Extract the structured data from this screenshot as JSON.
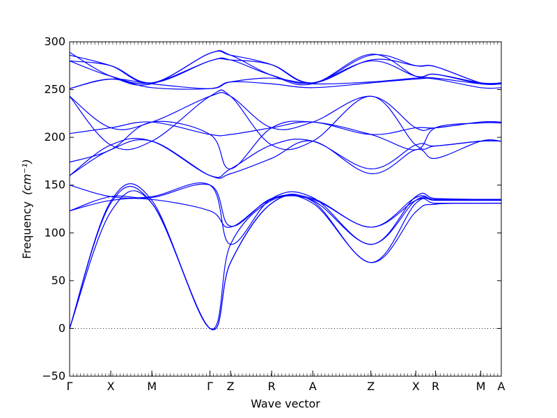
{
  "chart_data": {
    "type": "line",
    "xlabel": "Wave vector",
    "ylabel": "Frequency",
    "ylabel_unit": "(cm⁻¹)",
    "ylim": [
      -50,
      300
    ],
    "y_ticks": [
      -50,
      0,
      50,
      100,
      150,
      200,
      250,
      300
    ],
    "x_ticks": [
      {
        "label": "Γ",
        "x": 0.0
      },
      {
        "label": "X",
        "x": 0.5
      },
      {
        "label": "M",
        "x": 1.0
      },
      {
        "label": "Γ",
        "x": 1.707
      },
      {
        "label": "Z",
        "x": 1.957
      },
      {
        "label": "R",
        "x": 2.457
      },
      {
        "label": "A",
        "x": 2.957
      },
      {
        "label": "Z",
        "x": 3.664
      },
      {
        "label": "X",
        "x": 4.21
      },
      {
        "label": "R",
        "x": 4.45
      },
      {
        "label": "M",
        "x": 5.0
      },
      {
        "label": "A",
        "x": 5.25
      }
    ],
    "xlim": [
      0,
      5.25
    ],
    "zero_line": {
      "y": 0,
      "style": "dotted"
    },
    "series_color": "#0000ff",
    "series": [
      {
        "x": [
          0,
          0.5,
          1.0,
          1.707,
          1.957,
          2.457,
          2.957,
          3.664,
          4.21,
          4.45,
          5.0,
          5.25
        ],
        "y": [
          0,
          122,
          131,
          0,
          69,
          131,
          131,
          69,
          122,
          130,
          131,
          131
        ]
      },
      {
        "x": [
          0,
          0.5,
          1.0,
          1.707,
          1.957,
          2.457,
          2.957,
          3.664,
          4.21,
          4.45,
          5.0,
          5.25
        ],
        "y": [
          0,
          131,
          131,
          0,
          69,
          131,
          133,
          69,
          131,
          131,
          131,
          131
        ]
      },
      {
        "x": [
          0,
          0.5,
          1.0,
          1.707,
          1.957,
          2.457,
          2.957,
          3.664,
          4.21,
          4.45,
          5.0,
          5.25
        ],
        "y": [
          0,
          133,
          134,
          0,
          88,
          134,
          134,
          88,
          134,
          134,
          134,
          134
        ]
      },
      {
        "x": [
          0,
          0.5,
          1.0,
          1.707,
          1.957,
          2.457,
          2.957,
          3.664,
          4.21,
          4.45,
          5.0,
          5.25
        ],
        "y": [
          123,
          134,
          135,
          123,
          106,
          135,
          135,
          106,
          134,
          135,
          135,
          135
        ]
      },
      {
        "x": [
          0,
          0.5,
          1.0,
          1.707,
          1.957,
          2.457,
          2.957,
          3.664,
          4.21,
          4.45,
          5.0,
          5.25
        ],
        "y": [
          123,
          138,
          137,
          150,
          107,
          136,
          136,
          106,
          137,
          135,
          135,
          135
        ]
      },
      {
        "x": [
          0,
          0.5,
          1.0,
          1.707,
          1.957,
          2.457,
          2.957,
          3.664,
          4.21,
          4.45,
          5.0,
          5.25
        ],
        "y": [
          150,
          138,
          138,
          150,
          88,
          136,
          137,
          88,
          138,
          136,
          135,
          135
        ]
      },
      {
        "x": [
          0,
          0.5,
          1.0,
          1.707,
          1.957,
          2.457,
          2.957,
          3.664,
          4.21,
          4.45,
          5.0,
          5.25
        ],
        "y": [
          160,
          187,
          196,
          160,
          162,
          178,
          196,
          162,
          187,
          178,
          196,
          196
        ]
      },
      {
        "x": [
          0,
          0.5,
          1.0,
          1.707,
          1.957,
          2.457,
          2.957,
          3.664,
          4.21,
          4.45,
          5.0,
          5.25
        ],
        "y": [
          160,
          192,
          196,
          160,
          167,
          192,
          196,
          167,
          192,
          191,
          196,
          196
        ]
      },
      {
        "x": [
          0,
          0.5,
          1.0,
          1.707,
          1.957,
          2.457,
          2.957,
          3.664,
          4.21,
          4.45,
          5.0,
          5.25
        ],
        "y": [
          174,
          187,
          216,
          203,
          167,
          210,
          216,
          203,
          187,
          210,
          215,
          215
        ]
      },
      {
        "x": [
          0,
          0.5,
          1.0,
          1.707,
          1.957,
          2.457,
          2.957,
          3.664,
          4.21,
          4.45,
          5.0,
          5.25
        ],
        "y": [
          204,
          210,
          216,
          203,
          203,
          210,
          216,
          203,
          210,
          210,
          216,
          216
        ]
      },
      {
        "x": [
          0,
          0.5,
          1.0,
          1.707,
          1.957,
          2.457,
          2.957,
          3.664,
          4.21,
          4.45,
          5.0,
          5.25
        ],
        "y": [
          243,
          210,
          216,
          243,
          243,
          210,
          216,
          243,
          210,
          210,
          216,
          216
        ]
      },
      {
        "x": [
          0,
          0.5,
          1.0,
          1.707,
          1.957,
          2.457,
          2.957,
          3.664,
          4.21,
          4.45,
          5.0,
          5.25
        ],
        "y": [
          243,
          192,
          196,
          243,
          243,
          192,
          196,
          243,
          192,
          191,
          196,
          196
        ]
      },
      {
        "x": [
          0,
          0.5,
          1.0,
          1.707,
          1.957,
          2.457,
          2.957,
          3.664,
          4.21,
          4.45,
          5.0,
          5.25
        ],
        "y": [
          251,
          261,
          252,
          251,
          258,
          256,
          252,
          257,
          261,
          261,
          252,
          252
        ]
      },
      {
        "x": [
          0,
          0.5,
          1.0,
          1.707,
          1.957,
          2.457,
          2.957,
          3.664,
          4.21,
          4.45,
          5.0,
          5.25
        ],
        "y": [
          251,
          261,
          256,
          251,
          258,
          262,
          256,
          258,
          262,
          262,
          256,
          256
        ]
      },
      {
        "x": [
          0,
          0.5,
          1.0,
          1.707,
          1.957,
          2.457,
          2.957,
          3.664,
          4.21,
          4.45,
          5.0,
          5.25
        ],
        "y": [
          280,
          264,
          257,
          280,
          281,
          265,
          257,
          280,
          264,
          266,
          257,
          257
        ]
      },
      {
        "x": [
          0,
          0.5,
          1.0,
          1.707,
          1.957,
          2.457,
          2.957,
          3.664,
          4.21,
          4.45,
          5.0,
          5.25
        ],
        "y": [
          280,
          275,
          257,
          280,
          281,
          276,
          257,
          281,
          275,
          274,
          257,
          257
        ]
      },
      {
        "x": [
          0,
          0.5,
          1.0,
          1.707,
          1.957,
          2.457,
          2.957,
          3.664,
          4.21,
          4.45,
          5.0,
          5.25
        ],
        "y": [
          286,
          275,
          257,
          288,
          286,
          276,
          257,
          286,
          275,
          274,
          257,
          257
        ]
      },
      {
        "x": [
          0,
          0.5,
          1.0,
          1.707,
          1.957,
          2.457,
          2.957,
          3.664,
          4.21,
          4.45,
          5.0,
          5.25
        ],
        "y": [
          289,
          264,
          256,
          288,
          286,
          265,
          256,
          287,
          264,
          266,
          256,
          256
        ]
      }
    ]
  }
}
